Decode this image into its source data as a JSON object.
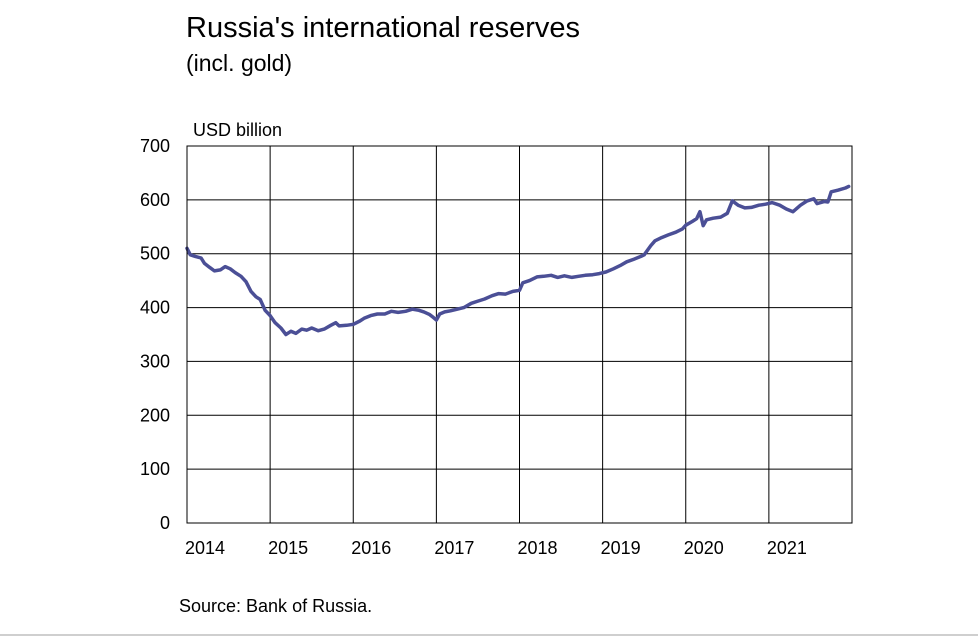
{
  "chart_data": {
    "type": "line",
    "title": "Russia's international reserves",
    "subtitle": "(incl. gold)",
    "ylabel": "USD billion",
    "source": "Source: Bank of Russia.",
    "ylim": [
      0,
      700
    ],
    "yticks": [
      0,
      100,
      200,
      300,
      400,
      500,
      600,
      700
    ],
    "xlim": [
      2014,
      2022
    ],
    "xticks": [
      2014,
      2015,
      2016,
      2017,
      2018,
      2019,
      2020,
      2021
    ],
    "xtick_labels": [
      "2014",
      "2015",
      "2016",
      "2017",
      "2018",
      "2019",
      "2020",
      "2021"
    ],
    "grid": true,
    "series": [
      {
        "color": "#4b4f96",
        "points": [
          [
            2014.0,
            510
          ],
          [
            2014.04,
            498
          ],
          [
            2014.1,
            495
          ],
          [
            2014.17,
            492
          ],
          [
            2014.21,
            482
          ],
          [
            2014.27,
            475
          ],
          [
            2014.33,
            468
          ],
          [
            2014.4,
            470
          ],
          [
            2014.46,
            476
          ],
          [
            2014.52,
            472
          ],
          [
            2014.58,
            465
          ],
          [
            2014.65,
            458
          ],
          [
            2014.71,
            448
          ],
          [
            2014.77,
            430
          ],
          [
            2014.83,
            420
          ],
          [
            2014.88,
            415
          ],
          [
            2014.94,
            395
          ],
          [
            2015.0,
            385
          ],
          [
            2015.06,
            372
          ],
          [
            2015.13,
            362
          ],
          [
            2015.19,
            350
          ],
          [
            2015.25,
            356
          ],
          [
            2015.31,
            352
          ],
          [
            2015.38,
            360
          ],
          [
            2015.44,
            358
          ],
          [
            2015.5,
            362
          ],
          [
            2015.58,
            357
          ],
          [
            2015.65,
            360
          ],
          [
            2015.73,
            367
          ],
          [
            2015.79,
            372
          ],
          [
            2015.83,
            366
          ],
          [
            2015.92,
            367
          ],
          [
            2016.0,
            369
          ],
          [
            2016.08,
            375
          ],
          [
            2016.13,
            380
          ],
          [
            2016.21,
            385
          ],
          [
            2016.29,
            388
          ],
          [
            2016.38,
            388
          ],
          [
            2016.46,
            393
          ],
          [
            2016.54,
            391
          ],
          [
            2016.63,
            393
          ],
          [
            2016.71,
            397
          ],
          [
            2016.79,
            395
          ],
          [
            2016.85,
            392
          ],
          [
            2016.92,
            387
          ],
          [
            2016.96,
            382
          ],
          [
            2017.0,
            377
          ],
          [
            2017.04,
            388
          ],
          [
            2017.1,
            392
          ],
          [
            2017.17,
            394
          ],
          [
            2017.25,
            397
          ],
          [
            2017.33,
            400
          ],
          [
            2017.42,
            408
          ],
          [
            2017.5,
            412
          ],
          [
            2017.58,
            416
          ],
          [
            2017.67,
            422
          ],
          [
            2017.75,
            426
          ],
          [
            2017.83,
            425
          ],
          [
            2017.92,
            430
          ],
          [
            2018.0,
            432
          ],
          [
            2018.04,
            446
          ],
          [
            2018.12,
            450
          ],
          [
            2018.21,
            457
          ],
          [
            2018.29,
            458
          ],
          [
            2018.38,
            460
          ],
          [
            2018.46,
            456
          ],
          [
            2018.54,
            459
          ],
          [
            2018.63,
            456
          ],
          [
            2018.71,
            458
          ],
          [
            2018.79,
            460
          ],
          [
            2018.88,
            461
          ],
          [
            2018.96,
            463
          ],
          [
            2019.04,
            466
          ],
          [
            2019.13,
            472
          ],
          [
            2019.21,
            478
          ],
          [
            2019.29,
            485
          ],
          [
            2019.38,
            490
          ],
          [
            2019.46,
            495
          ],
          [
            2019.5,
            498
          ],
          [
            2019.58,
            515
          ],
          [
            2019.63,
            524
          ],
          [
            2019.71,
            530
          ],
          [
            2019.79,
            535
          ],
          [
            2019.88,
            540
          ],
          [
            2019.96,
            546
          ],
          [
            2020.0,
            553
          ],
          [
            2020.08,
            560
          ],
          [
            2020.13,
            565
          ],
          [
            2020.17,
            578
          ],
          [
            2020.21,
            552
          ],
          [
            2020.25,
            563
          ],
          [
            2020.33,
            566
          ],
          [
            2020.42,
            568
          ],
          [
            2020.5,
            575
          ],
          [
            2020.56,
            598
          ],
          [
            2020.63,
            590
          ],
          [
            2020.71,
            585
          ],
          [
            2020.79,
            586
          ],
          [
            2020.88,
            590
          ],
          [
            2020.96,
            592
          ],
          [
            2021.04,
            595
          ],
          [
            2021.13,
            590
          ],
          [
            2021.21,
            583
          ],
          [
            2021.29,
            578
          ],
          [
            2021.38,
            590
          ],
          [
            2021.46,
            598
          ],
          [
            2021.54,
            602
          ],
          [
            2021.58,
            593
          ],
          [
            2021.67,
            597
          ],
          [
            2021.71,
            596
          ],
          [
            2021.75,
            615
          ],
          [
            2021.83,
            618
          ],
          [
            2021.92,
            622
          ],
          [
            2021.96,
            625
          ]
        ]
      }
    ]
  }
}
